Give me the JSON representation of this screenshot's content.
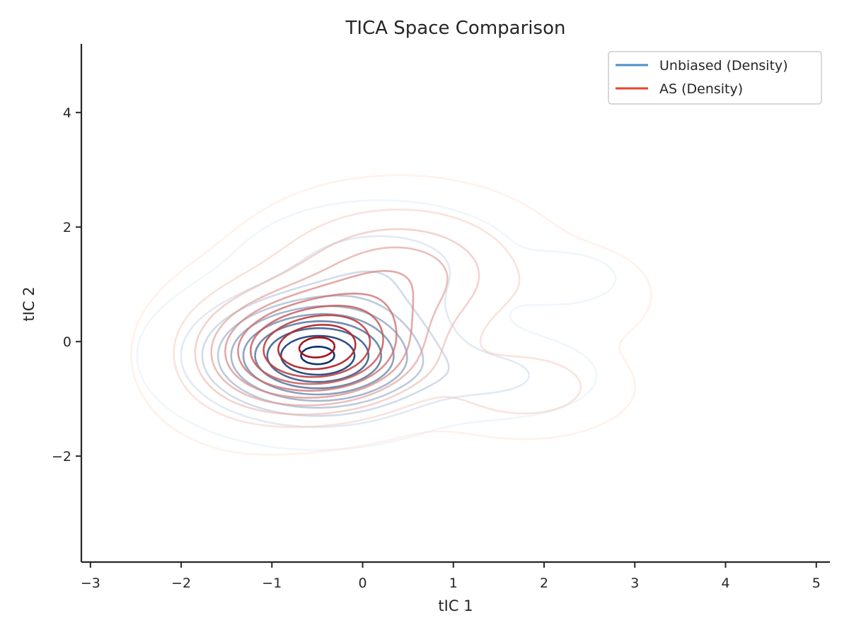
{
  "chart_data": {
    "type": "contour",
    "title": "TICA Space Comparison",
    "xlabel": "tIC 1",
    "ylabel": "tIC 2",
    "xlim": [
      -3.1,
      5.15
    ],
    "ylim": [
      -3.85,
      5.2
    ],
    "x_ticks": [
      -3,
      -2,
      -1,
      0,
      1,
      2,
      3,
      4,
      5
    ],
    "x_tick_labels": [
      "−3",
      "−2",
      "−1",
      "0",
      "1",
      "2",
      "3",
      "4",
      "5"
    ],
    "y_ticks": [
      -2,
      0,
      2,
      4
    ],
    "y_tick_labels": [
      "−2",
      "0",
      "2",
      "4"
    ],
    "grid": false,
    "legend_position": "top-right",
    "series": [
      {
        "name": "Unbiased (Density)",
        "color": "#4a90c8",
        "light_color": "#deebf7",
        "dark_color": "#08306b",
        "levels": 10,
        "components": [
          {
            "mean": [
              -0.5,
              -0.25
            ],
            "sigma": [
              0.75,
              0.62
            ],
            "weight": 1.0
          },
          {
            "mean": [
              2.2,
              1.1
            ],
            "sigma": [
              0.35,
              0.25
            ],
            "weight": 0.12
          },
          {
            "mean": [
              1.5,
              -0.6
            ],
            "sigma": [
              0.6,
              0.4
            ],
            "weight": 0.15
          },
          {
            "mean": [
              0.2,
              1.3
            ],
            "sigma": [
              0.8,
              0.6
            ],
            "weight": 0.2
          }
        ]
      },
      {
        "name": "AS (Density)",
        "color": "#e8432e",
        "light_color": "#fee0d2",
        "dark_color": "#a50f15",
        "levels": 10,
        "components": [
          {
            "mean": [
              -0.45,
              -0.15
            ],
            "sigma": [
              0.7,
              0.65
            ],
            "weight": 1.0
          },
          {
            "mean": [
              0.4,
              1.2
            ],
            "sigma": [
              0.85,
              0.75
            ],
            "weight": 0.45
          },
          {
            "mean": [
              1.8,
              -0.8
            ],
            "sigma": [
              0.6,
              0.45
            ],
            "weight": 0.25
          },
          {
            "mean": [
              2.5,
              0.8
            ],
            "sigma": [
              0.45,
              0.5
            ],
            "weight": 0.1
          },
          {
            "mean": [
              -1.3,
              -0.3
            ],
            "sigma": [
              0.6,
              0.8
            ],
            "weight": 0.2
          }
        ]
      }
    ]
  }
}
